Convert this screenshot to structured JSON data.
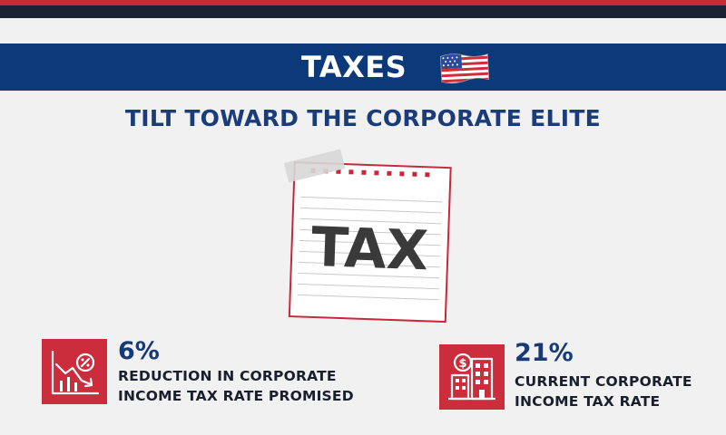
{
  "header": {
    "title": "TAXES",
    "flag_icon": "us-flag-icon"
  },
  "subtitle": "TILT TOWARD THE CORPORATE ELITE",
  "illustration": {
    "text": "TAX",
    "icon": "notepad-icon"
  },
  "stats": [
    {
      "value": "6%",
      "label_line1": "REDUCTION IN CORPORATE",
      "label_line2": "INCOME TAX RATE PROMISED",
      "icon": "declining-chart-percent-icon"
    },
    {
      "value": "21%",
      "label_line1": "CURRENT CORPORATE",
      "label_line2": "INCOME TAX RATE",
      "icon": "corporate-building-dollar-icon"
    }
  ],
  "colors": {
    "navy": "#0b3979",
    "red": "#cc2d3d",
    "dark": "#1b2235",
    "background": "#f1f1f1"
  }
}
